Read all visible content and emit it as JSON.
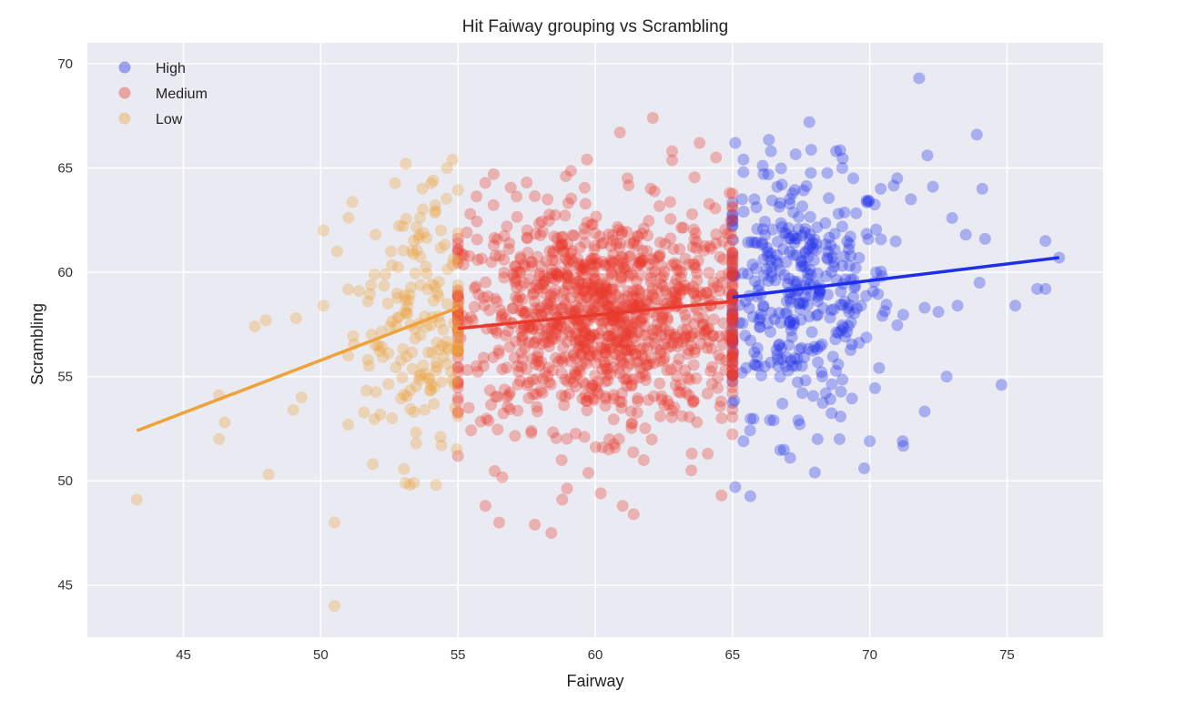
{
  "chart_data": {
    "type": "scatter",
    "title": "Hit Faiway grouping vs Scrambling",
    "xlabel": "Fairway",
    "ylabel": "Scrambling",
    "xlim": [
      41.5,
      78.5
    ],
    "ylim": [
      42.5,
      71
    ],
    "xticks": [
      45,
      50,
      55,
      60,
      65,
      70,
      75
    ],
    "yticks": [
      45,
      50,
      55,
      60,
      65,
      70
    ],
    "grid": true,
    "legend_position": "top-left",
    "series": [
      {
        "name": "High",
        "color": "#1f2ee8",
        "x_range": [
          65,
          77
        ],
        "regression": {
          "x": [
            65,
            76.9
          ],
          "y": [
            58.8,
            60.7
          ]
        },
        "points": [
          [
            65.1,
            66.2
          ],
          [
            65.1,
            49.7
          ],
          [
            65.4,
            64.8
          ],
          [
            65.4,
            51.9
          ],
          [
            65.8,
            63.5
          ],
          [
            66.1,
            65.1
          ],
          [
            66.4,
            65.8
          ],
          [
            66.5,
            52.9
          ],
          [
            66.8,
            64.2
          ],
          [
            67.1,
            51.1
          ],
          [
            67.4,
            52.9
          ],
          [
            67.8,
            67.2
          ],
          [
            68.0,
            50.4
          ],
          [
            68.1,
            52.0
          ],
          [
            68.4,
            54.2
          ],
          [
            68.9,
            52.0
          ],
          [
            69.0,
            65.0
          ],
          [
            69.4,
            64.5
          ],
          [
            69.8,
            50.6
          ],
          [
            70.0,
            51.9
          ],
          [
            70.4,
            64.0
          ],
          [
            71.0,
            64.5
          ],
          [
            71.2,
            51.9
          ],
          [
            71.5,
            63.5
          ],
          [
            71.8,
            69.3
          ],
          [
            72.1,
            65.6
          ],
          [
            72.3,
            64.1
          ],
          [
            72.5,
            58.1
          ],
          [
            72.8,
            55.0
          ],
          [
            73.0,
            62.6
          ],
          [
            73.2,
            58.4
          ],
          [
            73.5,
            61.8
          ],
          [
            73.9,
            66.6
          ],
          [
            74.1,
            64.0
          ],
          [
            74.2,
            61.6
          ],
          [
            74.0,
            59.5
          ],
          [
            74.8,
            54.6
          ],
          [
            75.3,
            58.4
          ],
          [
            76.1,
            59.2
          ],
          [
            76.4,
            61.5
          ],
          [
            76.4,
            59.2
          ],
          [
            76.9,
            60.7
          ]
        ]
      },
      {
        "name": "Medium",
        "color": "#e8392b",
        "x_range": [
          55,
          65
        ],
        "regression": {
          "x": [
            55,
            65
          ],
          "y": [
            57.3,
            58.6
          ]
        },
        "points": [
          [
            56.3,
            64.7
          ],
          [
            56.0,
            48.8
          ],
          [
            56.5,
            48.0
          ],
          [
            57.5,
            64.3
          ],
          [
            57.8,
            47.9
          ],
          [
            58.4,
            47.5
          ],
          [
            58.8,
            49.1
          ],
          [
            59.7,
            65.4
          ],
          [
            60.2,
            49.4
          ],
          [
            60.9,
            66.7
          ],
          [
            61.0,
            48.8
          ],
          [
            61.4,
            48.4
          ],
          [
            62.1,
            67.4
          ],
          [
            62.8,
            65.8
          ],
          [
            63.5,
            50.5
          ],
          [
            63.8,
            66.2
          ],
          [
            64.1,
            51.3
          ],
          [
            64.4,
            65.5
          ],
          [
            64.6,
            49.3
          ],
          [
            64.9,
            63.8
          ]
        ]
      },
      {
        "name": "Low",
        "color": "#eda23a",
        "x_range": [
          43,
          55
        ],
        "regression": {
          "x": [
            43.3,
            55
          ],
          "y": [
            52.4,
            58.3
          ]
        },
        "points": [
          [
            43.3,
            49.1
          ],
          [
            46.3,
            54.1
          ],
          [
            46.3,
            52.0
          ],
          [
            46.5,
            52.8
          ],
          [
            47.6,
            57.4
          ],
          [
            48.0,
            57.7
          ],
          [
            48.1,
            50.3
          ],
          [
            49.0,
            53.4
          ],
          [
            49.3,
            54.0
          ],
          [
            49.1,
            57.8
          ],
          [
            50.1,
            62.0
          ],
          [
            50.1,
            58.4
          ],
          [
            50.5,
            48.0
          ],
          [
            50.5,
            44.0
          ],
          [
            50.6,
            61.0
          ],
          [
            51.0,
            56.0
          ],
          [
            51.4,
            59.1
          ],
          [
            51.9,
            50.8
          ],
          [
            52.0,
            61.8
          ],
          [
            52.6,
            53.0
          ],
          [
            53.0,
            62.2
          ],
          [
            53.1,
            65.2
          ],
          [
            53.4,
            49.9
          ],
          [
            53.4,
            53.3
          ],
          [
            54.1,
            64.4
          ],
          [
            54.2,
            49.8
          ],
          [
            54.4,
            51.7
          ],
          [
            54.6,
            65.0
          ],
          [
            54.8,
            65.4
          ],
          [
            54.9,
            53.5
          ]
        ]
      }
    ]
  }
}
